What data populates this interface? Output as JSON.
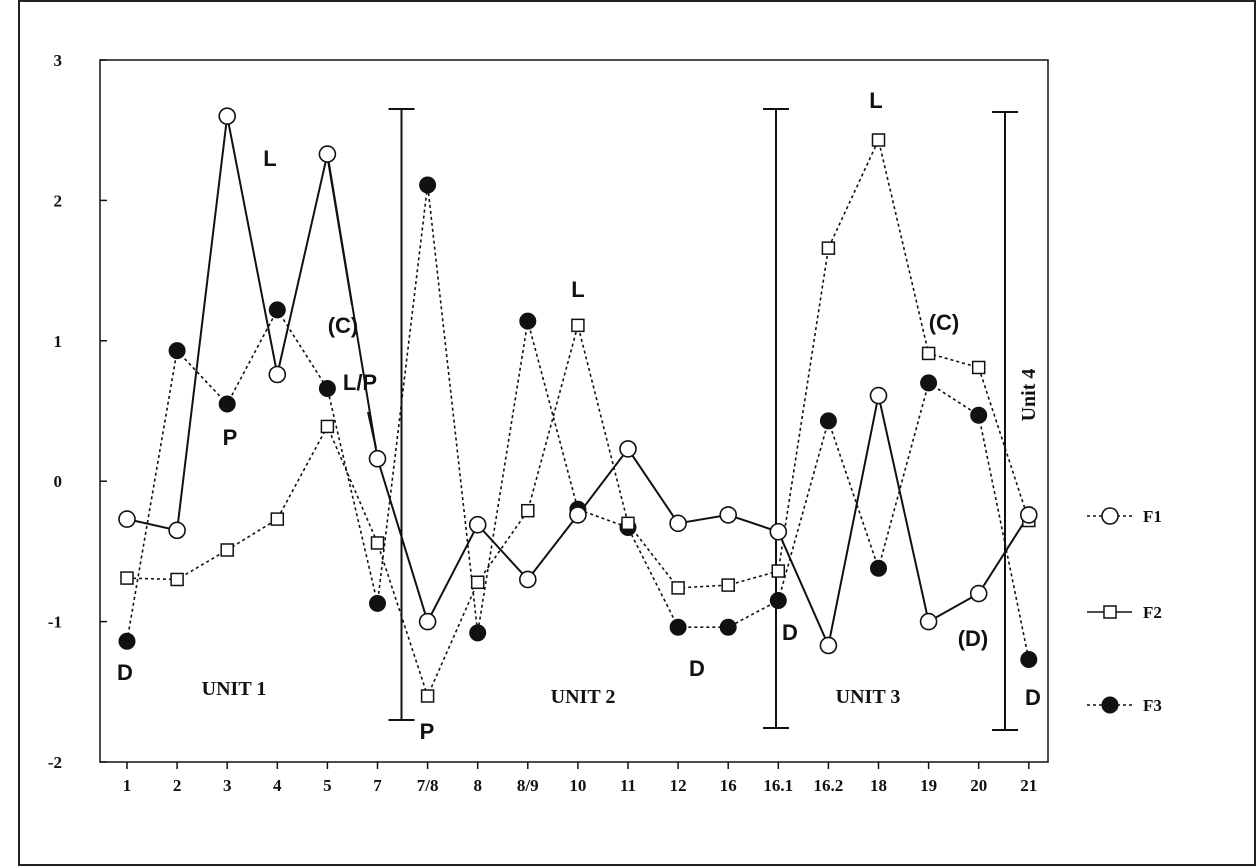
{
  "chart_data": {
    "type": "line",
    "categories": [
      "1",
      "2",
      "3",
      "4",
      "5",
      "7",
      "7/8",
      "8",
      "8/9",
      "10",
      "11",
      "12",
      "16",
      "16.1",
      "16.2",
      "18",
      "19",
      "20",
      "21"
    ],
    "ylim": [
      -2,
      3
    ],
    "yticks": [
      "-2",
      "-1",
      "0",
      "1",
      "2",
      "3"
    ],
    "grid": false,
    "legend_position": "right",
    "series": [
      {
        "name": "F1",
        "values": [
          -0.27,
          -0.35,
          2.6,
          0.76,
          2.33,
          0.16,
          -1.0,
          -0.31,
          -0.7,
          -0.24,
          0.23,
          -0.3,
          -0.24,
          -0.36,
          -1.17,
          0.61,
          -1.0,
          -0.8,
          -0.24
        ],
        "marker": "open-circle",
        "line": "solid"
      },
      {
        "name": "F2",
        "values": [
          -0.69,
          -0.7,
          -0.49,
          -0.27,
          0.39,
          -0.44,
          -1.53,
          -0.72,
          -0.21,
          1.11,
          -0.3,
          -0.76,
          -0.74,
          -0.64,
          1.66,
          2.43,
          0.91,
          0.81,
          -0.28
        ],
        "marker": "open-square",
        "line": "dotted"
      },
      {
        "name": "F3",
        "values": [
          -1.14,
          0.93,
          0.55,
          1.22,
          0.66,
          -0.87,
          2.11,
          -1.08,
          1.14,
          -0.2,
          -0.33,
          -1.04,
          -1.04,
          -0.85,
          0.43,
          -0.62,
          0.7,
          0.47,
          -1.27
        ],
        "marker": "filled-circle",
        "line": "dotted"
      }
    ],
    "units": [
      "UNIT 1",
      "UNIT 2",
      "UNIT 3",
      "Unit 4"
    ],
    "annotations": [
      "L",
      "(C)",
      "P",
      "D",
      "L/P",
      "P",
      "L",
      "D",
      "D",
      "L",
      "(C)",
      "(D)",
      "D"
    ]
  },
  "legend": [
    {
      "label": "F1",
      "marker": "open-circle"
    },
    {
      "label": "F2",
      "marker": "open-square"
    },
    {
      "label": "F3",
      "marker": "filled-circle"
    }
  ],
  "colors": {
    "ink": "#111111",
    "background": "#ffffff"
  }
}
